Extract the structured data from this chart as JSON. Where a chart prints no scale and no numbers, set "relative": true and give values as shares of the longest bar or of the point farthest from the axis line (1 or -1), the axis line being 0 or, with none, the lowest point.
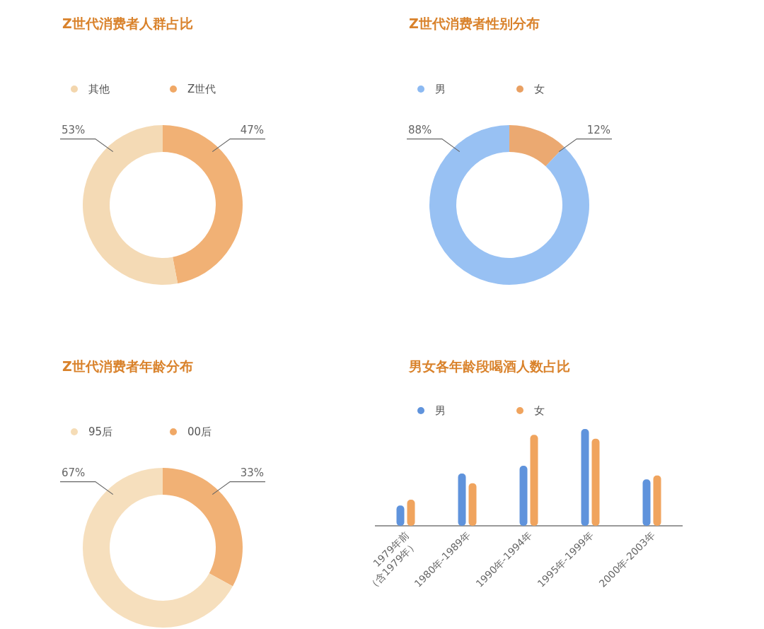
{
  "chart_data": [
    {
      "type": "donut",
      "title": "Z世代消费者人群占比",
      "legend": "top left",
      "categories": [
        "其他",
        "Z世代"
      ],
      "values": [
        53,
        47
      ],
      "colors": [
        "#f3d6ad",
        "#f0a866"
      ],
      "value_labels": [
        "53%",
        "47%"
      ]
    },
    {
      "type": "donut",
      "title": "Z世代消费者性别分布",
      "legend": "top left",
      "categories": [
        "男",
        "女"
      ],
      "values": [
        88,
        12
      ],
      "colors": [
        "#8dbaf2",
        "#e9a062"
      ],
      "value_labels": [
        "88%",
        "12%"
      ]
    },
    {
      "type": "donut",
      "title": "Z世代消费者年龄分布",
      "legend": "top left",
      "categories": [
        "95后",
        "00后"
      ],
      "values": [
        67,
        33
      ],
      "colors": [
        "#f5dcb6",
        "#f0a866"
      ],
      "value_labels": [
        "67%",
        "33%"
      ]
    },
    {
      "type": "bar",
      "title": "男女各年龄段喝酒人数占比",
      "legend": "top left",
      "relative": true,
      "categories": [
        "1979年前\n（含1979年）",
        "1980年-1989年",
        "1990年-1994年",
        "1995年-1999年",
        "2000年-2003年"
      ],
      "series": [
        {
          "name": "男",
          "color": "#5f93dc",
          "values": [
            0.21,
            0.54,
            0.62,
            1,
            0.48
          ]
        },
        {
          "name": "女",
          "color": "#f0a45e",
          "values": [
            0.27,
            0.44,
            0.94,
            0.9,
            0.52
          ]
        }
      ]
    }
  ]
}
